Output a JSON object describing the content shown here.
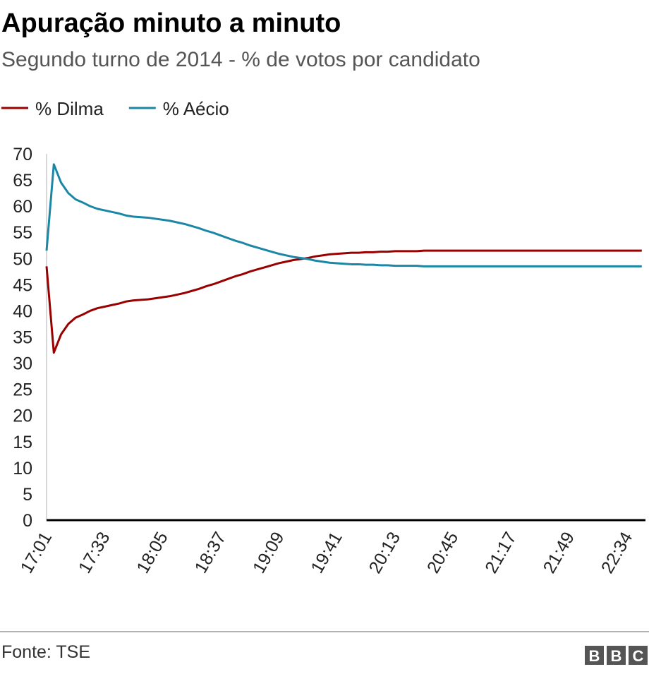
{
  "chart_data": {
    "type": "line",
    "title": "Apuração minuto a minuto",
    "subtitle": "Segundo turno de 2014 - % de votos por candidato",
    "source": "Fonte: TSE",
    "categories": [
      "17:01",
      null,
      null,
      null,
      null,
      null,
      null,
      null,
      "17:33",
      null,
      null,
      null,
      null,
      null,
      null,
      null,
      "18:05",
      null,
      null,
      null,
      null,
      null,
      null,
      null,
      "18:37",
      null,
      null,
      null,
      null,
      null,
      null,
      null,
      "19:09",
      null,
      null,
      null,
      null,
      null,
      null,
      null,
      "19:41",
      null,
      null,
      null,
      null,
      null,
      null,
      null,
      "20:13",
      null,
      null,
      null,
      null,
      null,
      null,
      null,
      "20:45",
      null,
      null,
      null,
      null,
      null,
      null,
      null,
      "21:17",
      null,
      null,
      null,
      null,
      null,
      null,
      null,
      "21:49",
      null,
      null,
      null,
      null,
      null,
      null,
      null,
      "22:34",
      null,
      null
    ],
    "series": [
      {
        "name": "% Dilma",
        "color": "#990000",
        "values": [
          48.5,
          32.0,
          35.5,
          37.5,
          38.7,
          39.3,
          40.0,
          40.5,
          40.8,
          41.1,
          41.4,
          41.8,
          42.0,
          42.1,
          42.2,
          42.4,
          42.6,
          42.8,
          43.1,
          43.4,
          43.8,
          44.2,
          44.7,
          45.1,
          45.6,
          46.1,
          46.6,
          47.0,
          47.5,
          47.9,
          48.3,
          48.7,
          49.1,
          49.4,
          49.7,
          49.9,
          50.1,
          50.4,
          50.6,
          50.8,
          50.9,
          51.0,
          51.1,
          51.1,
          51.2,
          51.2,
          51.3,
          51.3,
          51.4,
          51.4,
          51.4,
          51.4,
          51.5,
          51.5,
          51.5,
          51.5,
          51.5,
          51.5,
          51.5,
          51.5,
          51.5,
          51.5,
          51.5,
          51.5,
          51.5,
          51.5,
          51.5,
          51.5,
          51.5,
          51.5,
          51.5,
          51.5,
          51.5,
          51.5,
          51.5,
          51.5,
          51.5,
          51.5,
          51.5,
          51.5,
          51.5,
          51.5,
          51.5
        ]
      },
      {
        "name": "% Aécio",
        "color": "#1b87a5",
        "values": [
          51.5,
          68.0,
          64.5,
          62.5,
          61.3,
          60.7,
          60.0,
          59.5,
          59.2,
          58.9,
          58.6,
          58.2,
          58.0,
          57.9,
          57.8,
          57.6,
          57.4,
          57.2,
          56.9,
          56.6,
          56.2,
          55.8,
          55.3,
          54.9,
          54.4,
          53.9,
          53.4,
          53.0,
          52.5,
          52.1,
          51.7,
          51.3,
          50.9,
          50.6,
          50.3,
          50.1,
          49.9,
          49.6,
          49.4,
          49.2,
          49.1,
          49.0,
          48.9,
          48.9,
          48.8,
          48.8,
          48.7,
          48.7,
          48.6,
          48.6,
          48.6,
          48.6,
          48.5,
          48.5,
          48.5,
          48.5,
          48.5,
          48.5,
          48.5,
          48.5,
          48.5,
          48.5,
          48.5,
          48.5,
          48.5,
          48.5,
          48.5,
          48.5,
          48.5,
          48.5,
          48.5,
          48.5,
          48.5,
          48.5,
          48.5,
          48.5,
          48.5,
          48.5,
          48.5,
          48.5,
          48.5,
          48.5,
          48.5
        ]
      }
    ],
    "ylim": [
      0,
      70
    ],
    "yticks": [
      0,
      5,
      10,
      15,
      20,
      25,
      30,
      35,
      40,
      45,
      50,
      55,
      60,
      65,
      70
    ],
    "grid": false
  }
}
